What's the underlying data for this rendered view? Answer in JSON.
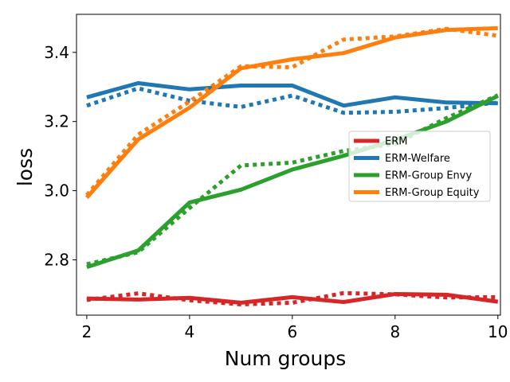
{
  "chart_data": {
    "type": "line",
    "title": "",
    "xlabel": "Num groups",
    "ylabel": "loss",
    "xlim": [
      1.8,
      10.05
    ],
    "ylim": [
      2.64,
      3.51
    ],
    "xticks": [
      2,
      4,
      6,
      8,
      10
    ],
    "xtick_labels": [
      "2",
      "4",
      "6",
      "8",
      "10"
    ],
    "yticks": [
      2.8,
      3.0,
      3.2,
      3.4
    ],
    "ytick_labels": [
      "2.8",
      "3.0",
      "3.2",
      "3.4"
    ],
    "grid": false,
    "legend_position": "center-right",
    "x": [
      2,
      3,
      4,
      5,
      6,
      7,
      8,
      9,
      10
    ],
    "series": [
      {
        "name": "ERM",
        "color": "#d62728",
        "solid": [
          2.688,
          2.685,
          2.69,
          2.676,
          2.692,
          2.678,
          2.701,
          2.699,
          2.679
        ],
        "dotted": [
          2.684,
          2.703,
          2.683,
          2.671,
          2.676,
          2.704,
          2.7,
          2.691,
          2.692
        ]
      },
      {
        "name": "ERM-Welfare",
        "color": "#1f77b4",
        "solid": [
          3.27,
          3.311,
          3.293,
          3.304,
          3.304,
          3.246,
          3.27,
          3.255,
          3.253
        ],
        "dotted": [
          3.246,
          3.296,
          3.26,
          3.242,
          3.275,
          3.225,
          3.228,
          3.239,
          3.255
        ]
      },
      {
        "name": "ERM-Group Envy",
        "color": "#2ca02c",
        "solid": [
          2.779,
          2.827,
          2.966,
          3.003,
          3.061,
          3.101,
          3.147,
          3.2,
          3.274
        ],
        "dotted": [
          2.787,
          2.822,
          2.95,
          3.073,
          3.081,
          3.115,
          3.135,
          3.21,
          3.276
        ]
      },
      {
        "name": "ERM-Group Equity",
        "color": "#ff7f0e",
        "solid": [
          2.98,
          3.148,
          3.24,
          3.354,
          3.38,
          3.398,
          3.443,
          3.465,
          3.47
        ],
        "dotted": [
          2.987,
          3.162,
          3.258,
          3.36,
          3.357,
          3.437,
          3.446,
          3.468,
          3.448
        ]
      }
    ]
  }
}
